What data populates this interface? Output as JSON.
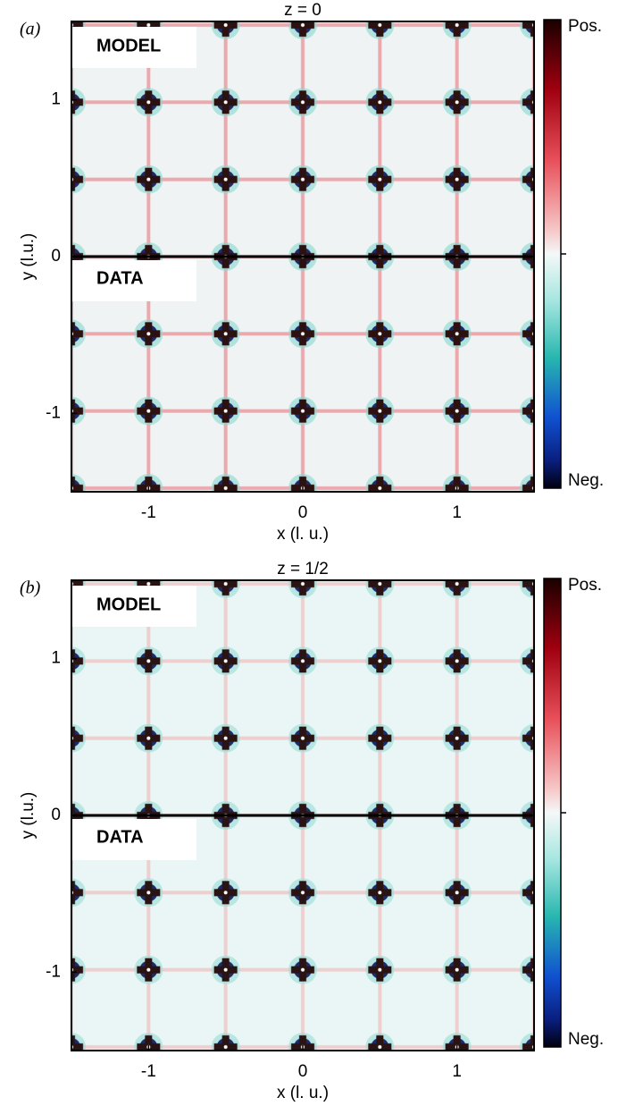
{
  "chart_data": [
    {
      "type": "heatmap",
      "panel_label": "(a)",
      "title": "z = 0",
      "xlabel": "x (l. u.)",
      "ylabel": "y (l.u.)",
      "xlim": [
        -1.5,
        1.5
      ],
      "ylim": [
        -1.5,
        1.5
      ],
      "xticks": [
        -1,
        0,
        1
      ],
      "yticks": [
        -1,
        0,
        1
      ],
      "annotations": [
        "MODEL",
        "DATA"
      ],
      "colorbar": {
        "max_label": "Pos.",
        "min_label": "Neg."
      }
    },
    {
      "type": "heatmap",
      "panel_label": "(b)",
      "title": "z = 1/2",
      "xlabel": "x (l. u.)",
      "ylabel": "y (l.u.)",
      "xlim": [
        -1.5,
        1.5
      ],
      "ylim": [
        -1.5,
        1.5
      ],
      "xticks": [
        -1,
        0,
        1
      ],
      "yticks": [
        -1,
        0,
        1
      ],
      "annotations": [
        "MODEL",
        "DATA"
      ],
      "colorbar": {
        "max_label": "Pos.",
        "min_label": "Neg."
      }
    }
  ]
}
